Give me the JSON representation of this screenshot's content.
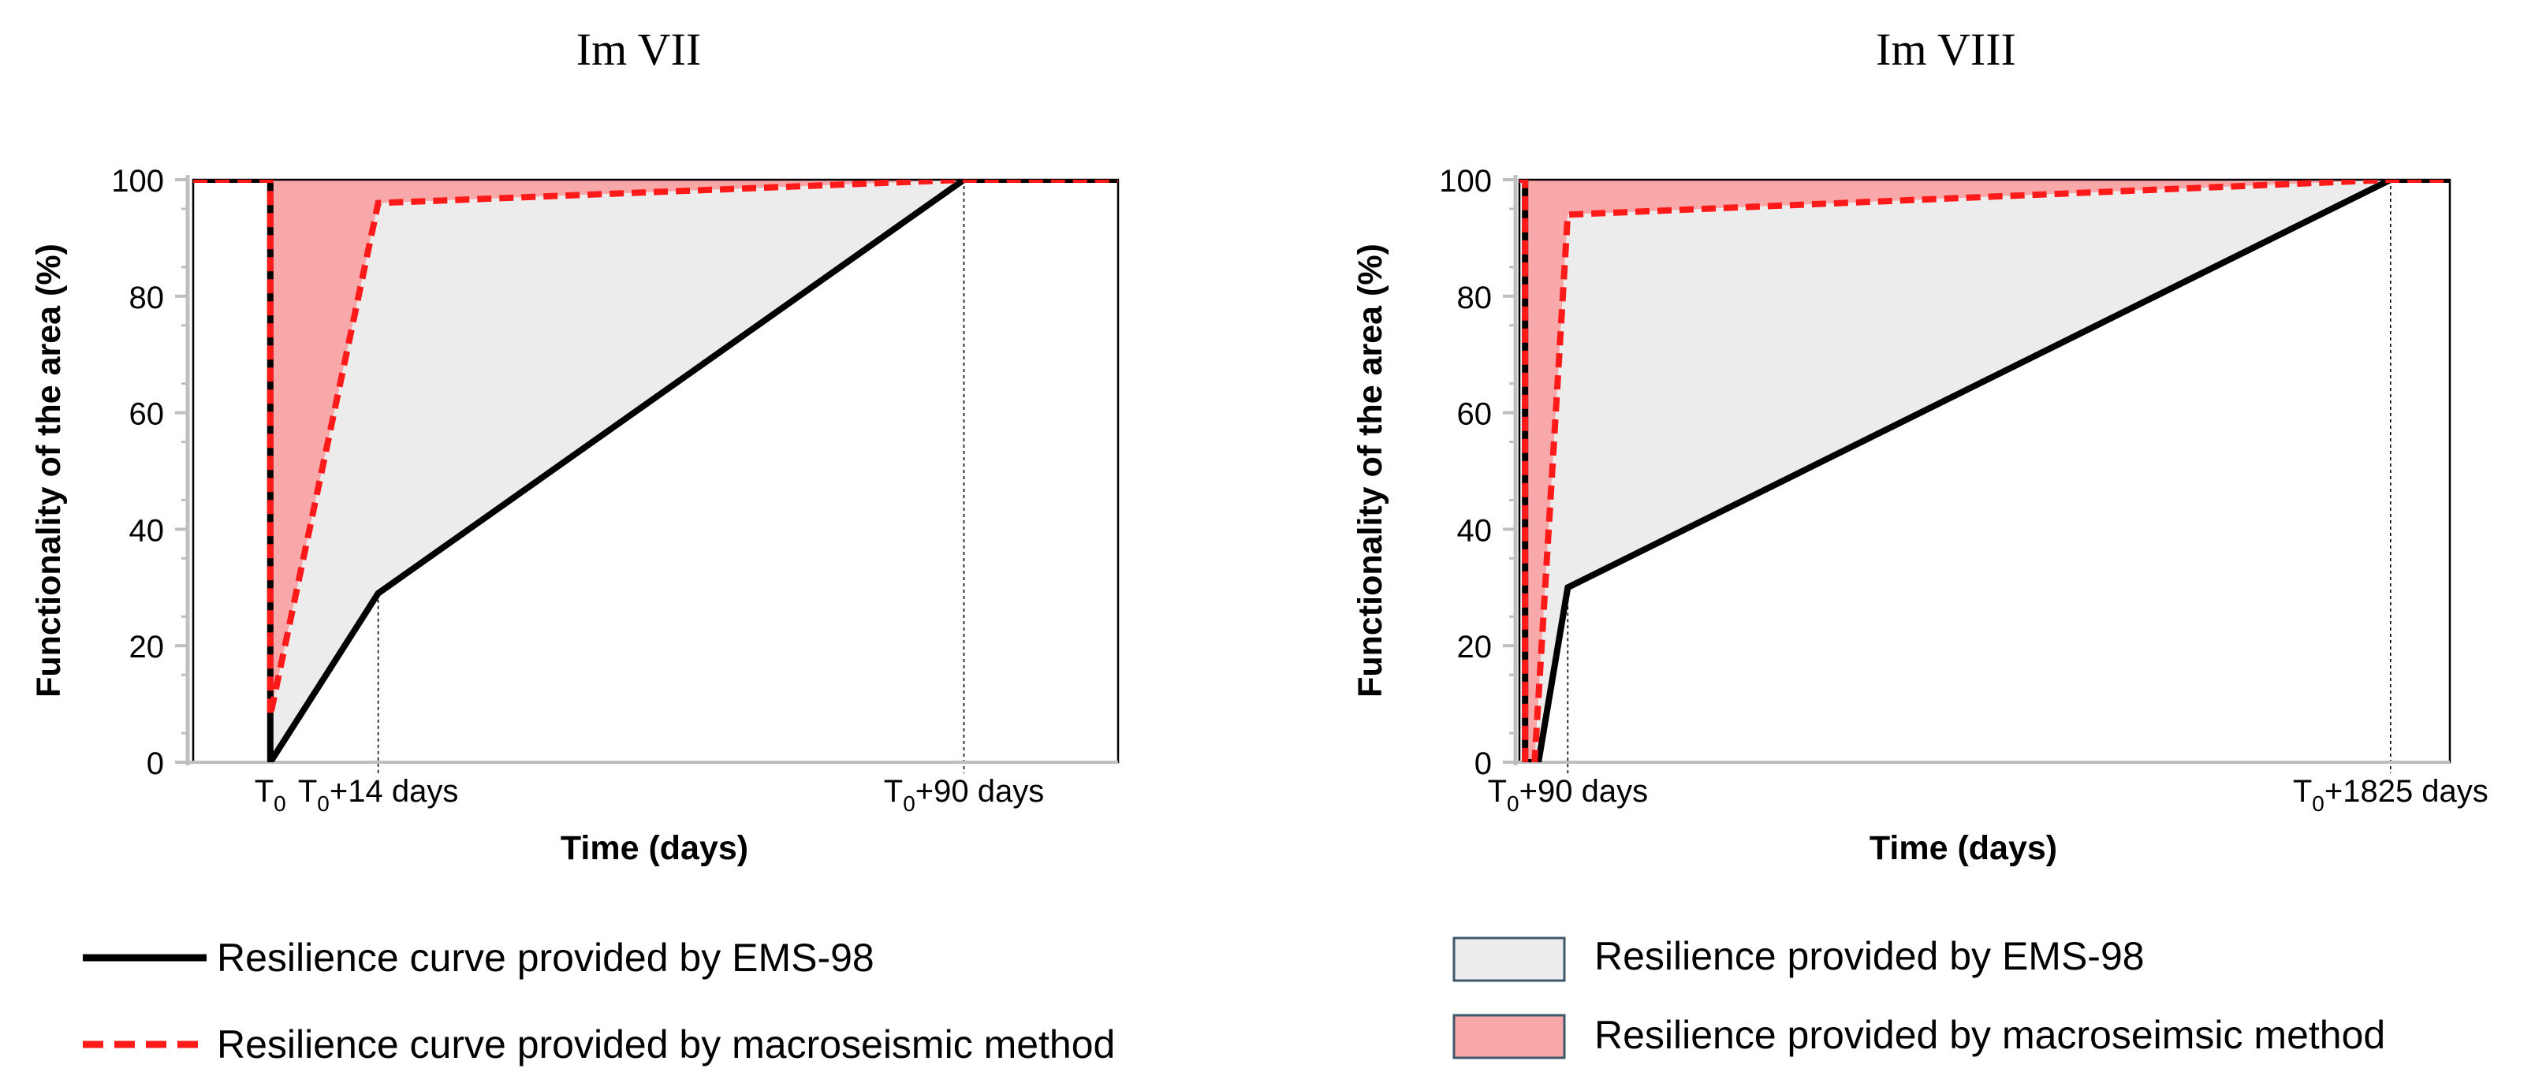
{
  "legend": {
    "ems_curve": "Resilience curve provided by EMS-98",
    "macro_curve": "Resilience curve provided by macroseismic method",
    "ems_area": "Resilience provided by EMS-98",
    "macro_area": "Resilience provided by macroseimsic method"
  },
  "colors": {
    "ems_line": "#000000",
    "macro_line": "#ff1a1a",
    "ems_fill": "#ececec",
    "macro_fill": "#f8a8a8",
    "grid_axis": "#bfbfbf"
  },
  "chart_data": [
    {
      "type": "line",
      "title": "Im VII",
      "xlabel": "Time (days)",
      "ylabel": "Functionality of the area (%)",
      "ylim": [
        0,
        100
      ],
      "yticks": [
        0,
        20,
        40,
        60,
        80,
        100
      ],
      "xlim": [
        -10,
        110
      ],
      "x_ticks": [
        {
          "x": 0,
          "base": "T",
          "sub": "0",
          "suffix": ""
        },
        {
          "x": 14,
          "base": "T",
          "sub": "0",
          "suffix": "+14 days"
        },
        {
          "x": 90,
          "base": "T",
          "sub": "0",
          "suffix": "+90 days"
        }
      ],
      "series": [
        {
          "key": "ems",
          "x": [
            -10,
            0,
            0,
            14,
            90,
            110
          ],
          "y": [
            100,
            100,
            0,
            29,
            100,
            100
          ]
        },
        {
          "key": "macro",
          "x": [
            -10,
            0,
            0,
            14,
            90,
            110
          ],
          "y": [
            100,
            100,
            8,
            96,
            100,
            100
          ]
        }
      ],
      "guides": [
        14,
        90
      ]
    },
    {
      "type": "line",
      "title": "Im VIII",
      "xlabel": "Time (days)",
      "ylabel": "Functionality of the area (%)",
      "ylim": [
        0,
        100
      ],
      "yticks": [
        0,
        20,
        40,
        60,
        80,
        100
      ],
      "xlim": [
        -12,
        1950
      ],
      "x_ticks": [
        {
          "x": 90,
          "base": "T",
          "sub": "0",
          "suffix": "+90 days"
        },
        {
          "x": 1825,
          "base": "T",
          "sub": "0",
          "suffix": "+1825 days"
        }
      ],
      "series": [
        {
          "key": "ems",
          "x": [
            -12,
            0,
            0,
            28,
            90,
            1825,
            1950
          ],
          "y": [
            100,
            100,
            0,
            0,
            30,
            100,
            100
          ]
        },
        {
          "key": "macro",
          "x": [
            -12,
            0,
            0,
            20,
            90,
            1825,
            1950
          ],
          "y": [
            100,
            100,
            0,
            0,
            94,
            100,
            100
          ]
        }
      ],
      "guides": [
        90,
        1825
      ]
    }
  ]
}
